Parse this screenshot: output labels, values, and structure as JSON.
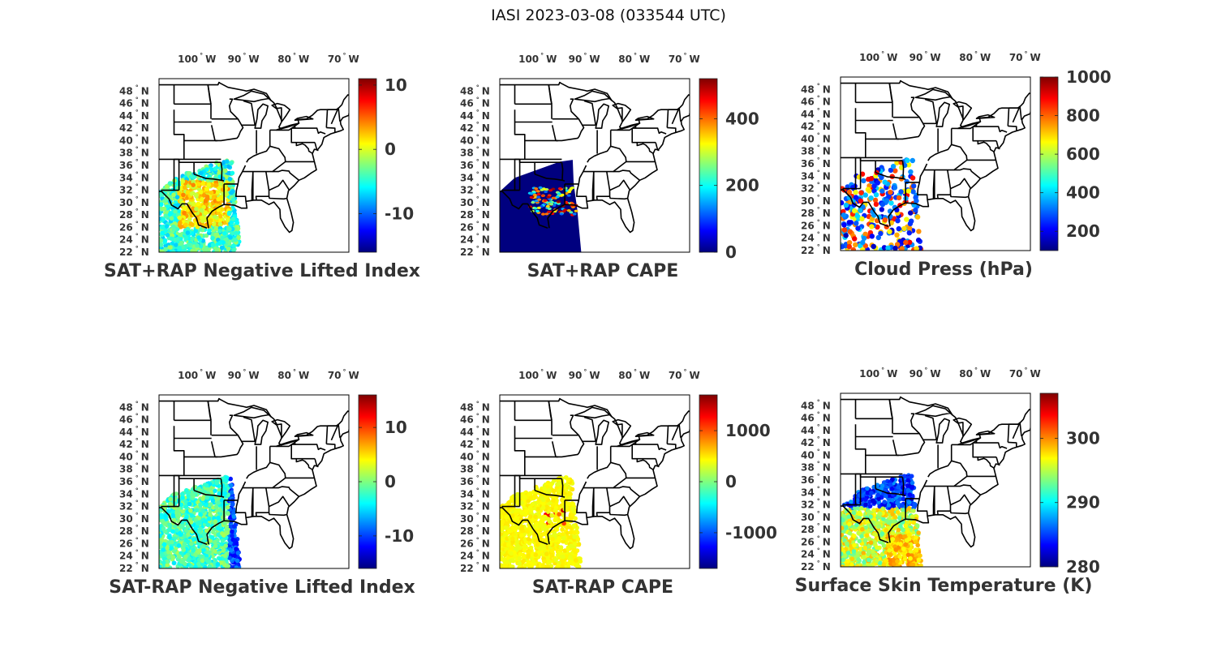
{
  "figure": {
    "title": "IASI 2023-03-08 (033544 UTC)",
    "colormap": "jet",
    "colormap_colors": [
      "#00007f",
      "#0000ff",
      "#007fff",
      "#00ffff",
      "#7fff7f",
      "#ffff00",
      "#ff7f00",
      "#ff0000",
      "#7f0000"
    ],
    "map_extent": {
      "lon": [
        -107,
        -69
      ],
      "lat": [
        22,
        50
      ]
    },
    "lon_ticks": [
      {
        "value": -100,
        "num": "100",
        "hemi": "W"
      },
      {
        "value": -90,
        "num": "90",
        "hemi": "W"
      },
      {
        "value": -80,
        "num": "80",
        "hemi": "W"
      },
      {
        "value": -70,
        "num": "70",
        "hemi": "W"
      }
    ],
    "lat_ticks": [
      {
        "value": 48,
        "num": "48",
        "hemi": "N"
      },
      {
        "value": 46,
        "num": "46",
        "hemi": "N"
      },
      {
        "value": 44,
        "num": "44",
        "hemi": "N"
      },
      {
        "value": 42,
        "num": "42",
        "hemi": "N"
      },
      {
        "value": 40,
        "num": "40",
        "hemi": "N"
      },
      {
        "value": 38,
        "num": "38",
        "hemi": "N"
      },
      {
        "value": 36,
        "num": "36",
        "hemi": "N"
      },
      {
        "value": 34,
        "num": "34",
        "hemi": "N"
      },
      {
        "value": 32,
        "num": "32",
        "hemi": "N"
      },
      {
        "value": 30,
        "num": "30",
        "hemi": "N"
      },
      {
        "value": 28,
        "num": "28",
        "hemi": "N"
      },
      {
        "value": 26,
        "num": "26",
        "hemi": "N"
      },
      {
        "value": 24,
        "num": "24",
        "hemi": "N"
      },
      {
        "value": 22,
        "num": "22",
        "hemi": "N"
      }
    ]
  },
  "panels": [
    {
      "id": "p1",
      "title": "SAT+RAP Negative Lifted Index",
      "cbar": {
        "min": -16,
        "max": 11,
        "ticks": [
          {
            "value": 10,
            "label": "10"
          },
          {
            "value": 0,
            "label": "0"
          },
          {
            "value": -10,
            "label": "-10"
          }
        ]
      }
    },
    {
      "id": "p2",
      "title": "SAT+RAP CAPE",
      "cbar": {
        "min": 0,
        "max": 520,
        "ticks": [
          {
            "value": 400,
            "label": "400"
          },
          {
            "value": 200,
            "label": "200"
          },
          {
            "value": 0,
            "label": "0"
          }
        ]
      }
    },
    {
      "id": "p3",
      "title": "Cloud Press (hPa)",
      "cbar": {
        "min": 100,
        "max": 1000,
        "ticks": [
          {
            "value": 1000,
            "label": "1000"
          },
          {
            "value": 800,
            "label": "800"
          },
          {
            "value": 600,
            "label": "600"
          },
          {
            "value": 400,
            "label": "400"
          },
          {
            "value": 200,
            "label": "200"
          }
        ]
      }
    },
    {
      "id": "p4",
      "title": "SAT-RAP Negative Lifted Index",
      "cbar": {
        "min": -16,
        "max": 16,
        "ticks": [
          {
            "value": 10,
            "label": "10"
          },
          {
            "value": 0,
            "label": "0"
          },
          {
            "value": -10,
            "label": "-10"
          }
        ]
      }
    },
    {
      "id": "p5",
      "title": "SAT-RAP CAPE",
      "cbar": {
        "min": -1700,
        "max": 1700,
        "ticks": [
          {
            "value": 1000,
            "label": "1000"
          },
          {
            "value": 0,
            "label": "0"
          },
          {
            "value": -1000,
            "label": "-1000"
          }
        ]
      }
    },
    {
      "id": "p6",
      "title": "Surface Skin Temperature (K)",
      "cbar": {
        "min": 280,
        "max": 307,
        "ticks": [
          {
            "value": 300,
            "label": "300"
          },
          {
            "value": 290,
            "label": "290"
          },
          {
            "value": 280,
            "label": "280"
          }
        ]
      }
    }
  ]
}
